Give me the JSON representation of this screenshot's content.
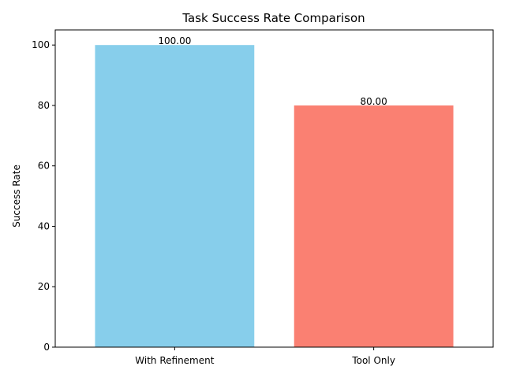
{
  "chart_data": {
    "type": "bar",
    "title": "Task Success Rate Comparison",
    "xlabel": "",
    "ylabel": "Success Rate",
    "categories": [
      "With Refinement",
      "Tool Only"
    ],
    "values": [
      100.0,
      80.0
    ],
    "data_labels": [
      "100.00",
      "80.00"
    ],
    "colors": [
      "#87CEEB",
      "#FA8072"
    ],
    "ylim": [
      0,
      105
    ],
    "yticks": [
      0,
      20,
      40,
      60,
      80,
      100
    ],
    "ytick_labels": [
      "0",
      "20",
      "40",
      "60",
      "80",
      "100"
    ],
    "grid": false
  }
}
